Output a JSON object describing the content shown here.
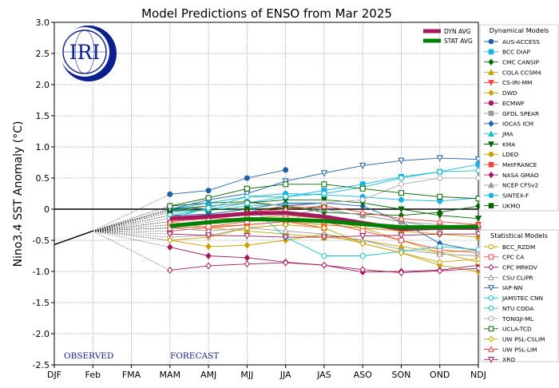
{
  "chart_data": {
    "type": "line",
    "title": "Model Predictions of ENSO from Mar 2025",
    "ylabel": "Nino3.4 SST Anomaly (°C)",
    "xlabel": "",
    "categories": [
      "DJF",
      "Feb",
      "FMA",
      "MAM",
      "AMJ",
      "MJJ",
      "JJA",
      "JAS",
      "ASO",
      "SON",
      "OND",
      "NDJ"
    ],
    "ylim": [
      -2.5,
      3.0
    ],
    "yticks": [
      "3.0",
      "2.5",
      "2.0",
      "1.5",
      "1.0",
      "0.5",
      "0",
      "-0.5",
      "-1.0",
      "-1.5",
      "-2.0",
      "-2.5"
    ],
    "grid": true,
    "observed": {
      "label": "OBSERVED",
      "x": [
        0,
        1
      ],
      "y": [
        -0.57,
        -0.35
      ]
    },
    "forecast_label": "FORECAST",
    "logo_text": "IRI",
    "avg_legend": [
      {
        "name": "DYN AVG",
        "color": "#a3195b"
      },
      {
        "name": "STAT AVG",
        "color": "#008000"
      }
    ],
    "averages": [
      {
        "name": "DYN AVG",
        "color": "#a3195b",
        "values": [
          -0.15,
          -0.12,
          -0.07,
          -0.06,
          -0.12,
          -0.22,
          -0.32,
          -0.3,
          -0.3
        ]
      },
      {
        "name": "STAT AVG",
        "color": "#008000",
        "values": [
          -0.27,
          -0.21,
          -0.16,
          -0.17,
          -0.19,
          -0.24,
          -0.29,
          -0.29,
          -0.28
        ]
      }
    ],
    "dynamical_title": "Dynamical Models",
    "statistical_title": "Statistical Models",
    "dynamical_models": [
      {
        "name": "AUS-ACCESS",
        "color": "#1f5fa8",
        "marker": "circle",
        "filled": true,
        "values": [
          0.24,
          0.3,
          0.5,
          0.63
        ]
      },
      {
        "name": "BCC DIAP",
        "color": "#17b3e8",
        "marker": "square",
        "filled": true,
        "values": [
          -0.02,
          0.05,
          0.1,
          0.2,
          0.3,
          0.4,
          0.52,
          0.6,
          0.72
        ]
      },
      {
        "name": "CMC CANSIP",
        "color": "#006400",
        "marker": "diamond",
        "filled": true,
        "values": [
          0.05,
          0.1,
          0.12,
          0.05,
          -0.05,
          -0.08,
          -0.1,
          -0.05,
          0.05
        ]
      },
      {
        "name": "COLA CCSM4",
        "color": "#c9a100",
        "marker": "triangle-up",
        "filled": true,
        "values": [
          -0.2,
          -0.3,
          -0.35,
          -0.4,
          -0.45,
          -0.5,
          -0.6,
          -0.7,
          -0.65
        ]
      },
      {
        "name": "CS-IRI-MM",
        "color": "#ff4040",
        "marker": "triangle-down",
        "filled": true,
        "values": [
          -0.1,
          -0.15,
          -0.15,
          -0.2,
          -0.25,
          -0.3,
          -0.35,
          -0.3,
          -0.25
        ]
      },
      {
        "name": "DWD",
        "color": "#c9a100",
        "marker": "diamond",
        "filled": true,
        "values": [
          -0.5,
          -0.6,
          -0.58,
          -0.5,
          -0.4,
          -0.55,
          -0.7,
          -0.9,
          -1.0
        ]
      },
      {
        "name": "ECMWF",
        "color": "#a3195b",
        "marker": "circle",
        "filled": true,
        "values": [
          -0.2,
          -0.15,
          -0.05,
          0.05,
          0.1
        ]
      },
      {
        "name": "GFDL SPEAR",
        "color": "#999999",
        "marker": "square",
        "filled": true,
        "values": [
          -0.25,
          -0.2,
          -0.15,
          -0.1,
          0.0,
          -0.1,
          -0.2,
          -0.3,
          -0.3
        ]
      },
      {
        "name": "IOCAS ICM",
        "color": "#1f5fa8",
        "marker": "diamond",
        "filled": true,
        "values": [
          -0.1,
          -0.08,
          0.0,
          0.1,
          0.1,
          0.05,
          -0.2,
          -0.55,
          -0.67
        ]
      },
      {
        "name": "JMA",
        "color": "#17c0d0",
        "marker": "triangle-up",
        "filled": true,
        "values": [
          -0.05,
          -0.02,
          0.05,
          0.08,
          0.1
        ]
      },
      {
        "name": "KMA",
        "color": "#006400",
        "marker": "triangle-down",
        "filled": true,
        "values": [
          0.0,
          0.05,
          0.1,
          0.15,
          0.15,
          0.1,
          0.0,
          -0.1,
          -0.15
        ]
      },
      {
        "name": "LDEO",
        "color": "#c9a100",
        "marker": "circle",
        "filled": true,
        "values": [
          -0.3,
          -0.28,
          -0.25,
          -0.2,
          -0.25,
          -0.3,
          -0.35,
          -0.4,
          -0.45
        ]
      },
      {
        "name": "MetFRANCE",
        "color": "#ff4040",
        "marker": "square",
        "filled": true,
        "values": [
          -0.35,
          -0.3,
          -0.25,
          -0.2,
          -0.3
        ]
      },
      {
        "name": "NASA GMAO",
        "color": "#a3195b",
        "marker": "diamond",
        "filled": true,
        "values": [
          -0.61,
          -0.75,
          -0.78,
          -0.85,
          -0.9,
          -1.01,
          -1.0,
          -0.98,
          -0.9
        ]
      },
      {
        "name": "NCEP CFSv2",
        "color": "#999999",
        "marker": "triangle-up",
        "filled": true,
        "values": [
          -0.05,
          0.05,
          0.1,
          0.05,
          0.0,
          -0.1,
          -0.2,
          -0.25,
          -0.3
        ]
      },
      {
        "name": "SINTEX-F",
        "color": "#17b3e8",
        "marker": "circle",
        "filled": true,
        "values": [
          0.0,
          0.1,
          0.2,
          0.25,
          0.23,
          0.2,
          0.15,
          0.13,
          0.18
        ]
      },
      {
        "name": "UKMO",
        "color": "#006400",
        "marker": "square",
        "filled": true,
        "values": [
          -0.02,
          -0.01,
          0.0,
          0.02,
          0.03
        ]
      }
    ],
    "statistical_models": [
      {
        "name": "BCC_RZDM",
        "color": "#c9a100",
        "marker": "circle",
        "filled": false,
        "values": [
          -0.25,
          -0.22,
          -0.15,
          -0.1,
          -0.15,
          -0.3,
          -0.5,
          -0.7,
          -0.85
        ]
      },
      {
        "name": "CPC CA",
        "color": "#ff4040",
        "marker": "square",
        "filled": false,
        "values": [
          -0.3,
          -0.28,
          -0.2,
          -0.15,
          -0.2,
          -0.35,
          -0.5,
          -0.65,
          -0.7
        ]
      },
      {
        "name": "CPC MRKOV",
        "color": "#a3195b",
        "marker": "diamond",
        "filled": false,
        "values": [
          -0.98,
          -0.91,
          -0.88,
          -0.86,
          -0.9,
          -0.97,
          -1.02,
          -0.99,
          -0.95
        ]
      },
      {
        "name": "CSU CLIPR",
        "color": "#999999",
        "marker": "triangle-up",
        "filled": false,
        "values": [
          -0.3,
          -0.35,
          -0.3,
          -0.35,
          -0.4,
          -0.5,
          -0.65,
          -0.72,
          -0.75
        ]
      },
      {
        "name": "IAP-NN",
        "color": "#1f5fa8",
        "marker": "triangle-down",
        "filled": false,
        "values": [
          0.0,
          0.15,
          0.25,
          0.45,
          0.58,
          0.7,
          0.78,
          0.82,
          0.8
        ]
      },
      {
        "name": "JAMSTEC CNN",
        "color": "#17c0d0",
        "marker": "circle",
        "filled": false,
        "values": [
          -0.1,
          0.0,
          0.1,
          -0.45,
          -0.75,
          -0.75,
          -0.68,
          -0.6,
          -0.65
        ]
      },
      {
        "name": "NTU CODA",
        "color": "#17c0d0",
        "marker": "circle",
        "filled": false,
        "values": [
          -0.15,
          0.02,
          0.2,
          0.2,
          0.25,
          0.35,
          0.5,
          0.6,
          0.62
        ]
      },
      {
        "name": "TONGJI-ML",
        "color": "#aaaaaa",
        "marker": "circle",
        "filled": false,
        "values": [
          -0.45,
          -0.42,
          -0.3,
          -0.25,
          0.1,
          0.15,
          0.4,
          0.5,
          0.5
        ]
      },
      {
        "name": "UCLA-TCD",
        "color": "#006400",
        "marker": "square",
        "filled": false,
        "values": [
          0.05,
          0.18,
          0.33,
          0.4,
          0.4,
          0.33,
          0.26,
          0.2,
          0.17
        ]
      },
      {
        "name": "UW PSL-CSLIM",
        "color": "#c9a100",
        "marker": "diamond",
        "filled": false,
        "values": [
          -0.5,
          -0.45,
          -0.3,
          -0.25,
          -0.3,
          -0.55,
          -0.7,
          -0.85,
          -0.8
        ]
      },
      {
        "name": "UW PSL-LIM",
        "color": "#ff4040",
        "marker": "triangle-up",
        "filled": false,
        "values": [
          -0.2,
          -0.15,
          -0.05,
          0.0,
          0.05,
          -0.05,
          -0.15,
          -0.2,
          -0.25
        ]
      },
      {
        "name": "XRO",
        "color": "#a3195b",
        "marker": "triangle-down",
        "filled": false,
        "values": [
          -0.4,
          -0.42,
          -0.43,
          -0.45,
          -0.45,
          -0.43,
          -0.42,
          -0.4,
          -0.4
        ]
      }
    ]
  }
}
